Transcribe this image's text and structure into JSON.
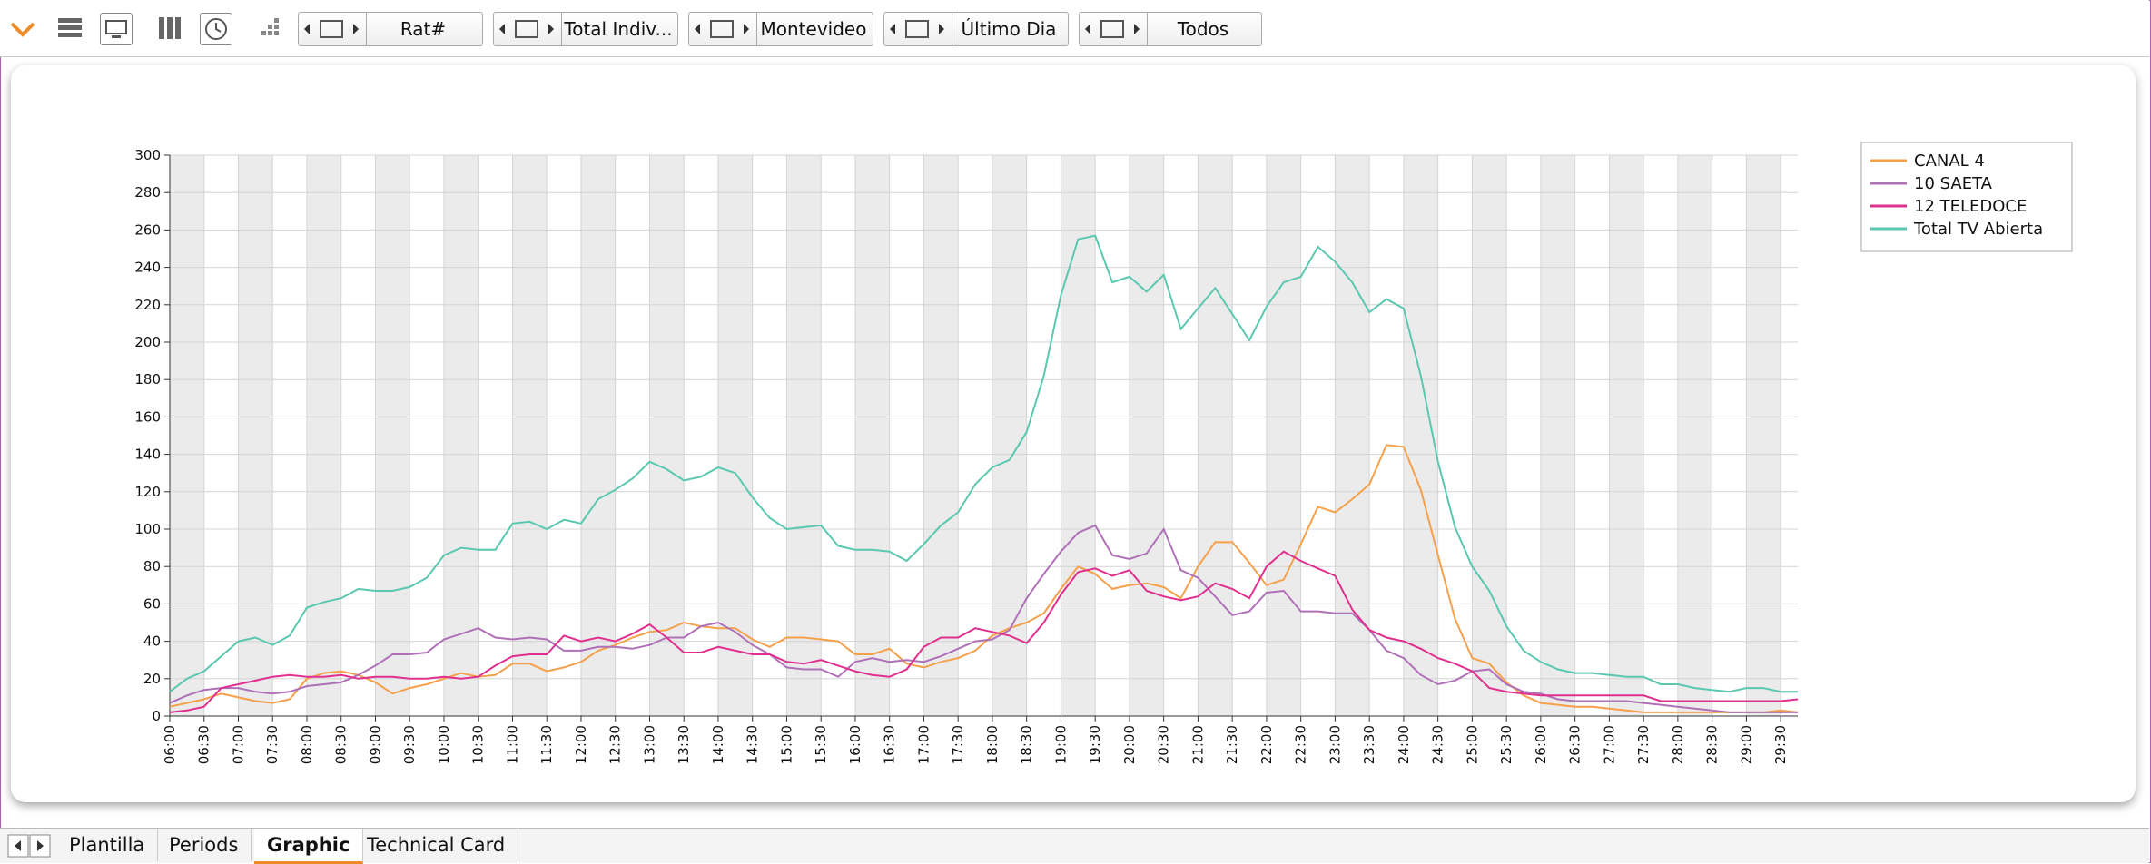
{
  "toolbar": {
    "dropdowns": [
      "Rat#",
      "Total Indiv...",
      "Montevideo",
      "Último Dia",
      "Todos"
    ]
  },
  "tabs": [
    "Plantilla",
    "Periods",
    "Graphic",
    "Technical Card"
  ],
  "chart_data": {
    "type": "line",
    "categories": [
      "06:00",
      null,
      "06:30",
      null,
      "07:00",
      null,
      "07:30",
      null,
      "08:00",
      null,
      "08:30",
      null,
      "09:00",
      null,
      "09:30",
      null,
      "10:00",
      null,
      "10:30",
      null,
      "11:00",
      null,
      "11:30",
      null,
      "12:00",
      null,
      "12:30",
      null,
      "13:00",
      null,
      "13:30",
      null,
      "14:00",
      null,
      "14:30",
      null,
      "15:00",
      null,
      "15:30",
      null,
      "16:00",
      null,
      "16:30",
      null,
      "17:00",
      null,
      "17:30",
      null,
      "18:00",
      null,
      "18:30",
      null,
      "19:00",
      null,
      "19:30",
      null,
      "20:00",
      null,
      "20:30",
      null,
      "21:00",
      null,
      "21:30",
      null,
      "22:00",
      null,
      "22:30",
      null,
      "23:00",
      null,
      "23:30",
      null,
      "24:00",
      null,
      "24:30",
      null,
      "25:00",
      null,
      "25:30",
      null,
      "26:00",
      null,
      "26:30",
      null,
      "27:00",
      null,
      "27:30",
      null,
      "28:00",
      null,
      "28:30",
      null,
      "29:00",
      null,
      "29:30",
      null
    ],
    "series": [
      {
        "name": "CANAL 4",
        "color": "#f5a04a",
        "values": [
          5,
          7,
          9,
          12,
          10,
          8,
          7,
          9,
          20,
          23,
          24,
          22,
          18,
          12,
          15,
          17,
          20,
          23,
          21,
          22,
          28,
          28,
          24,
          26,
          29,
          35,
          38,
          42,
          45,
          46,
          50,
          48,
          47,
          47,
          41,
          37,
          42,
          42,
          41,
          40,
          33,
          33,
          36,
          28,
          26,
          29,
          31,
          35,
          43,
          47,
          50,
          55,
          68,
          80,
          76,
          68,
          70,
          71,
          69,
          63,
          80,
          93,
          93,
          82,
          70,
          73,
          92,
          112,
          109,
          116,
          124,
          145,
          144,
          121,
          86,
          52,
          31,
          28,
          18,
          11,
          7,
          6,
          5,
          5,
          4,
          3,
          2,
          2,
          2,
          2,
          2,
          2,
          2,
          2,
          3,
          2
        ]
      },
      {
        "name": "10 SAETA",
        "color": "#b070b8",
        "values": [
          7,
          11,
          14,
          15,
          15,
          13,
          12,
          13,
          16,
          17,
          18,
          22,
          27,
          33,
          33,
          34,
          41,
          44,
          47,
          42,
          41,
          42,
          41,
          35,
          35,
          37,
          37,
          36,
          38,
          42,
          42,
          48,
          50,
          45,
          38,
          33,
          26,
          25,
          25,
          21,
          29,
          31,
          29,
          30,
          29,
          32,
          36,
          40,
          41,
          46,
          63,
          76,
          88,
          98,
          102,
          86,
          84,
          87,
          100,
          78,
          74,
          64,
          54,
          56,
          66,
          67,
          56,
          56,
          55,
          55,
          46,
          35,
          31,
          22,
          17,
          19,
          24,
          25,
          17,
          13,
          12,
          9,
          8,
          8,
          8,
          8,
          7,
          6,
          5,
          4,
          3,
          2,
          2,
          2,
          2,
          2
        ]
      },
      {
        "name": "12 TELEDOCE",
        "color": "#e0308f",
        "values": [
          2,
          3,
          5,
          15,
          17,
          19,
          21,
          22,
          21,
          21,
          22,
          20,
          21,
          21,
          20,
          20,
          21,
          20,
          21,
          27,
          32,
          33,
          33,
          43,
          40,
          42,
          40,
          44,
          49,
          42,
          34,
          34,
          37,
          35,
          33,
          33,
          29,
          28,
          30,
          27,
          24,
          22,
          21,
          25,
          37,
          42,
          42,
          47,
          45,
          43,
          39,
          50,
          65,
          77,
          79,
          75,
          78,
          67,
          64,
          62,
          64,
          71,
          68,
          63,
          80,
          88,
          83,
          79,
          75,
          57,
          46,
          42,
          40,
          36,
          31,
          28,
          24,
          15,
          13,
          12,
          11,
          11,
          11,
          11,
          11,
          11,
          11,
          8,
          8,
          8,
          8,
          8,
          8,
          8,
          8,
          9
        ]
      },
      {
        "name": "Total TV Abierta",
        "color": "#5ac8b0",
        "values": [
          13,
          20,
          24,
          32,
          40,
          42,
          38,
          43,
          58,
          61,
          63,
          68,
          67,
          67,
          69,
          74,
          86,
          90,
          89,
          89,
          103,
          104,
          100,
          105,
          103,
          116,
          121,
          127,
          136,
          132,
          126,
          128,
          133,
          130,
          117,
          106,
          100,
          101,
          102,
          91,
          89,
          89,
          88,
          83,
          92,
          102,
          109,
          124,
          133,
          137,
          152,
          182,
          225,
          255,
          257,
          232,
          235,
          227,
          236,
          207,
          218,
          229,
          215,
          201,
          219,
          232,
          235,
          251,
          243,
          232,
          216,
          223,
          218,
          182,
          136,
          101,
          80,
          67,
          48,
          35,
          29,
          25,
          23,
          23,
          22,
          21,
          21,
          17,
          17,
          15,
          14,
          13,
          15,
          15,
          13,
          13
        ]
      }
    ],
    "ylim": [
      0,
      300
    ],
    "yticks": [
      0,
      20,
      40,
      60,
      80,
      100,
      120,
      140,
      160,
      180,
      200,
      220,
      240,
      260,
      280,
      300
    ],
    "grid": true,
    "legend": "top-right"
  }
}
